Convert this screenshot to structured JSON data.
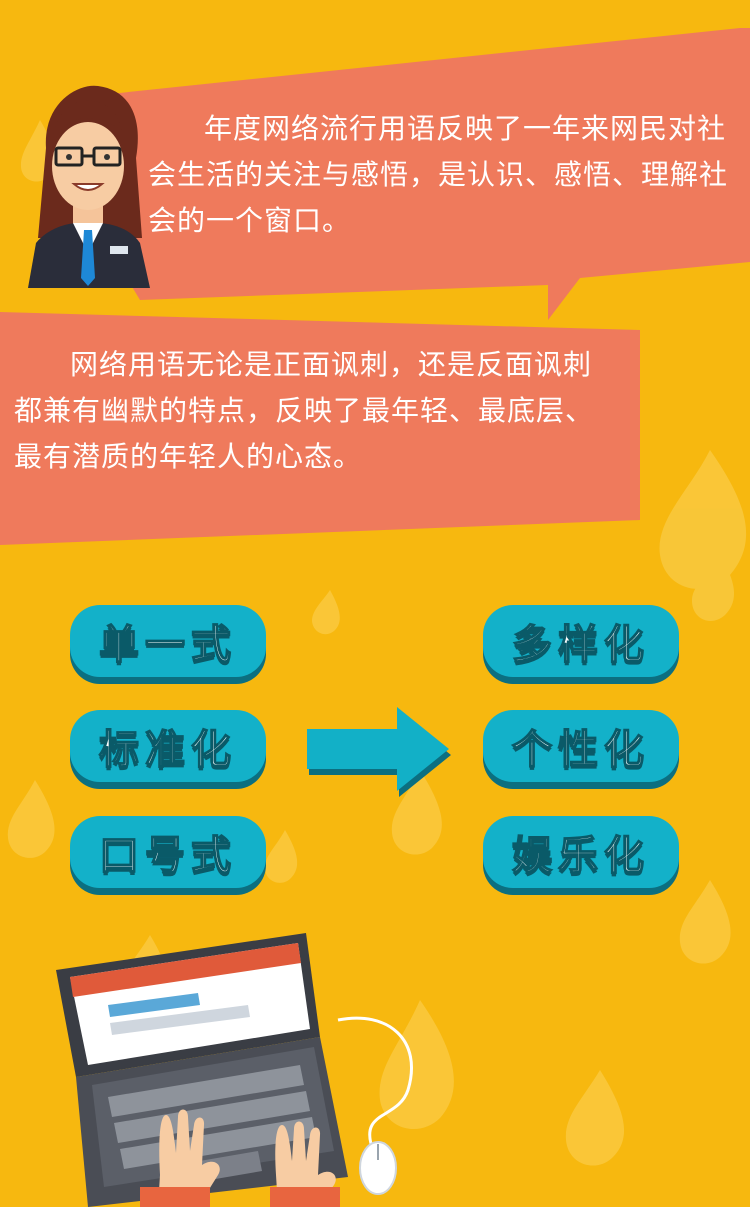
{
  "colors": {
    "background": "#f7b80f",
    "bubble": "#ef7a5c",
    "pill": "#13b1c9",
    "pill_shadow": "#0c6f80",
    "arrow": "#12b0c7"
  },
  "speech": {
    "paragraph1": "年度网络流行用语反映了一年来网民对社会生活的关注与感悟，是认识、感悟、理解社会的一个窗口。",
    "paragraph2": "网络用语无论是正面讽刺，还是反面讽刺都兼有幽默的特点，反映了最年轻、最底层、最有潜质的年轻人的心态。"
  },
  "before": [
    "单一式",
    "标准化",
    "口号式"
  ],
  "after": [
    "多样化",
    "个性化",
    "娱乐化"
  ],
  "icons": {
    "avatar": "female-teacher-avatar-icon",
    "arrow": "right-arrow-icon",
    "laptop": "laptop-hands-icon",
    "mouse": "mouse-icon"
  }
}
